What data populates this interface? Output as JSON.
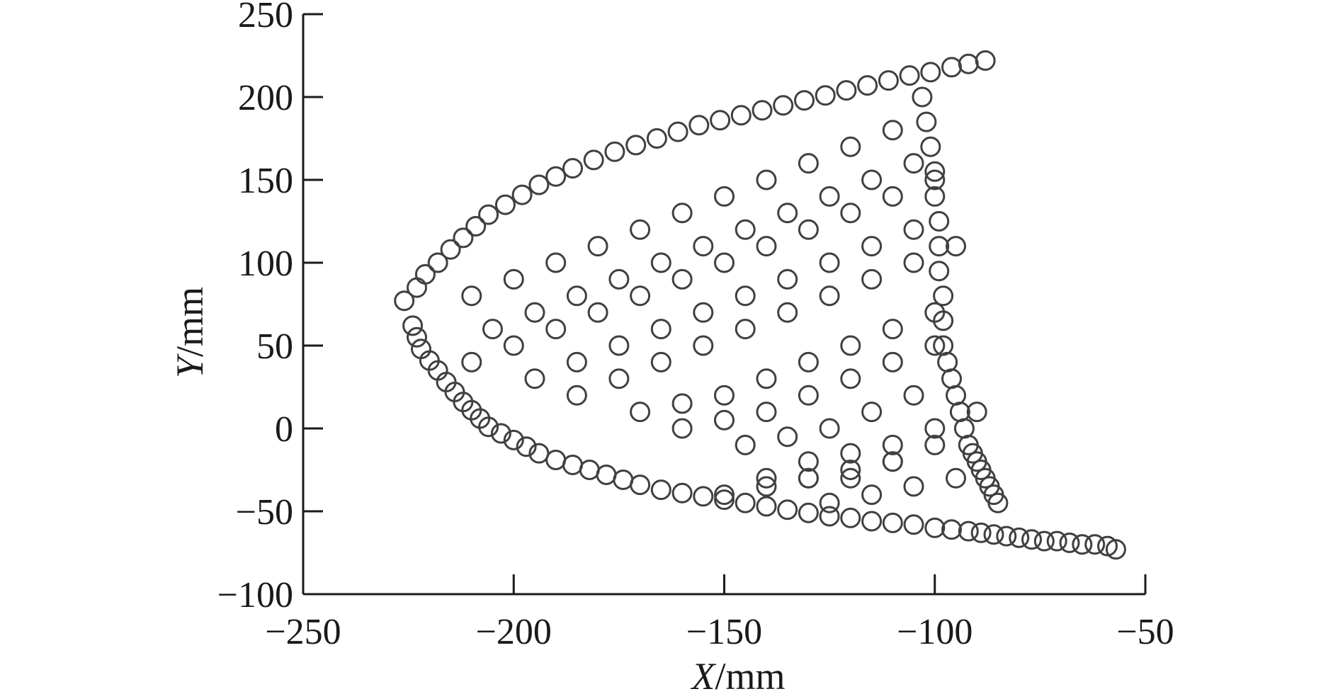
{
  "chart_data": {
    "type": "scatter",
    "title": "",
    "xlabel": {
      "var": "X",
      "unit": "/mm"
    },
    "ylabel": {
      "var": "Y",
      "unit": "/mm"
    },
    "xlim": [
      -250,
      -50
    ],
    "ylim": [
      -100,
      250
    ],
    "xticks": [
      -250,
      -200,
      -150,
      -100,
      -50
    ],
    "yticks": [
      -100,
      -50,
      0,
      50,
      100,
      150,
      200,
      250
    ],
    "xtick_labels": [
      "−250",
      "−200",
      "−150",
      "−100",
      "−50"
    ],
    "ytick_labels": [
      "−100",
      "−50",
      "0",
      "50",
      "100",
      "150",
      "200",
      "250"
    ],
    "grid": false,
    "marker": "open-circle",
    "marker_color": "#404040",
    "series": [
      {
        "name": "",
        "x": [
          -226,
          -223,
          -221,
          -218,
          -215,
          -212,
          -209,
          -206,
          -202,
          -198,
          -194,
          -190,
          -186,
          -181,
          -176,
          -171,
          -166,
          -161,
          -156,
          -151,
          -146,
          -141,
          -136,
          -131,
          -126,
          -121,
          -116,
          -111,
          -106,
          -101,
          -96,
          -92,
          -88,
          -224,
          -223,
          -222,
          -220,
          -218,
          -216,
          -214,
          -212,
          -210,
          -208,
          -206,
          -203,
          -200,
          -197,
          -194,
          -190,
          -186,
          -182,
          -178,
          -174,
          -170,
          -165,
          -160,
          -155,
          -150,
          -145,
          -140,
          -135,
          -130,
          -125,
          -120,
          -115,
          -110,
          -105,
          -100,
          -96,
          -92,
          -89,
          -86,
          -83,
          -80,
          -77,
          -74,
          -71,
          -68,
          -65,
          -62,
          -59,
          -57,
          -103,
          -102,
          -101,
          -100,
          -100,
          -99,
          -99,
          -99,
          -98,
          -98,
          -98,
          -97,
          -96,
          -95,
          -94,
          -93,
          -92,
          -91,
          -90,
          -89,
          -88,
          -87,
          -86,
          -85,
          -210,
          -200,
          -190,
          -180,
          -170,
          -160,
          -150,
          -140,
          -130,
          -120,
          -110,
          -205,
          -195,
          -185,
          -175,
          -165,
          -155,
          -145,
          -135,
          -125,
          -115,
          -105,
          -210,
          -200,
          -190,
          -180,
          -170,
          -160,
          -150,
          -140,
          -130,
          -120,
          -110,
          -100,
          -195,
          -185,
          -175,
          -165,
          -155,
          -145,
          -135,
          -125,
          -115,
          -105,
          -185,
          -175,
          -165,
          -155,
          -145,
          -135,
          -125,
          -115,
          -105,
          -95,
          -170,
          -160,
          -150,
          -140,
          -130,
          -120,
          -110,
          -100,
          -160,
          -150,
          -140,
          -130,
          -120,
          -110,
          -100,
          -145,
          -135,
          -125,
          -115,
          -105,
          -130,
          -120,
          -110,
          -100,
          -90,
          -140,
          -130,
          -120,
          -110,
          -100,
          -150,
          -140,
          -130,
          -120,
          -110,
          -125,
          -115,
          -105,
          -95
        ],
        "y": [
          77,
          85,
          93,
          100,
          108,
          115,
          122,
          129,
          135,
          141,
          147,
          152,
          157,
          162,
          167,
          171,
          175,
          179,
          183,
          186,
          189,
          192,
          195,
          198,
          201,
          204,
          207,
          210,
          213,
          215,
          218,
          220,
          222,
          62,
          55,
          48,
          41,
          35,
          28,
          22,
          16,
          11,
          6,
          1,
          -3,
          -7,
          -11,
          -15,
          -19,
          -22,
          -25,
          -28,
          -31,
          -34,
          -37,
          -39,
          -41,
          -43,
          -45,
          -47,
          -49,
          -51,
          -53,
          -54,
          -56,
          -57,
          -58,
          -60,
          -61,
          -62,
          -63,
          -64,
          -65,
          -66,
          -67,
          -68,
          -68,
          -69,
          -70,
          -70,
          -71,
          -73,
          200,
          185,
          170,
          155,
          140,
          125,
          110,
          95,
          80,
          65,
          50,
          40,
          30,
          20,
          10,
          0,
          -10,
          -15,
          -20,
          -25,
          -30,
          -35,
          -40,
          -45,
          80,
          90,
          100,
          110,
          120,
          130,
          140,
          150,
          160,
          170,
          180,
          60,
          70,
          80,
          90,
          100,
          110,
          120,
          130,
          140,
          150,
          160,
          40,
          50,
          60,
          70,
          80,
          90,
          100,
          110,
          120,
          130,
          140,
          150,
          30,
          40,
          50,
          60,
          70,
          80,
          90,
          100,
          110,
          120,
          20,
          30,
          40,
          50,
          60,
          70,
          80,
          90,
          100,
          110,
          10,
          15,
          20,
          30,
          40,
          50,
          60,
          70,
          0,
          5,
          10,
          20,
          30,
          40,
          50,
          -10,
          -5,
          0,
          10,
          20,
          -20,
          -15,
          -10,
          0,
          10,
          -30,
          -30,
          -30,
          -20,
          -10,
          -40,
          -35,
          -30,
          -25,
          -20,
          -45,
          -40,
          -35,
          -30
        ]
      }
    ]
  }
}
